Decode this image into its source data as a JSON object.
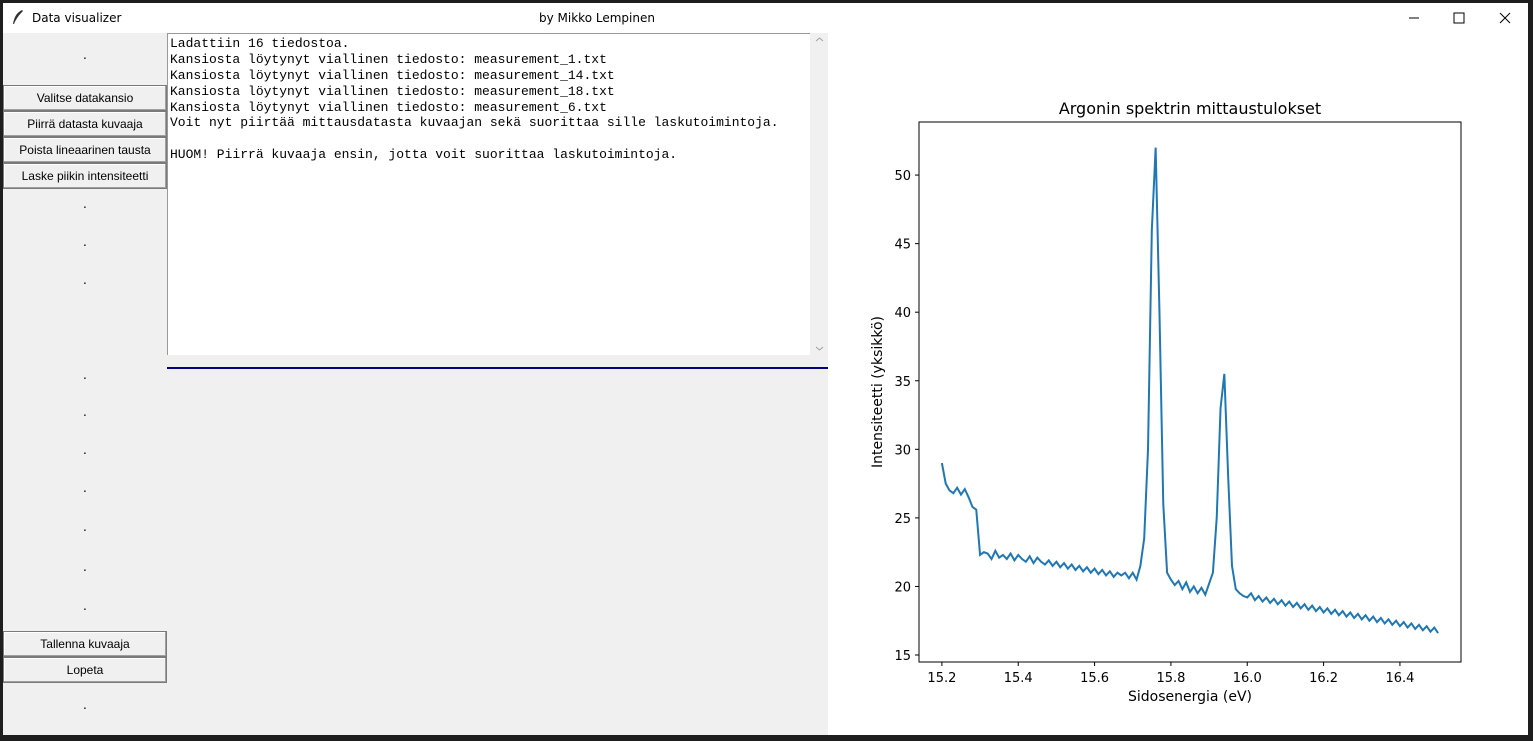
{
  "window": {
    "title": "Data visualizer",
    "subtitle": "by Mikko Lempinen"
  },
  "sidebar": {
    "buttons_top": [
      "Valitse datakansio",
      "Piirrä datasta kuvaaja",
      "Poista lineaarinen tausta",
      "Laske piikin intensiteetti"
    ],
    "buttons_bottom": [
      "Tallenna kuvaaja",
      "Lopeta"
    ],
    "dots": [
      ".",
      ".",
      ".",
      ".",
      ".",
      ".",
      ".",
      ".",
      ".",
      ".",
      ".",
      "."
    ]
  },
  "log": {
    "lines": [
      "Ladattiin 16 tiedostoa.",
      "Kansiosta löytynyt viallinen tiedosto: measurement_1.txt",
      "Kansiosta löytynyt viallinen tiedosto: measurement_14.txt",
      "Kansiosta löytynyt viallinen tiedosto: measurement_18.txt",
      "Kansiosta löytynyt viallinen tiedosto: measurement_6.txt",
      "Voit nyt piirtää mittausdatasta kuvaajan sekä suorittaa sille laskutoimintoja."
    ],
    "note": "HUOM! Piirrä kuvaaja ensin, jotta voit suorittaa laskutoimintoja."
  },
  "chart_data": {
    "type": "line",
    "title": "Argonin spektrin mittaustulokset",
    "xlabel": "Sidosenergia (eV)",
    "ylabel": "Intensiteetti (yksikkö)",
    "color": "#1f77b4",
    "x": [
      15.2,
      15.21,
      15.22,
      15.23,
      15.24,
      15.25,
      15.26,
      15.27,
      15.28,
      15.29,
      15.3,
      15.31,
      15.32,
      15.33,
      15.34,
      15.35,
      15.36,
      15.37,
      15.38,
      15.39,
      15.4,
      15.41,
      15.42,
      15.43,
      15.44,
      15.45,
      15.46,
      15.47,
      15.48,
      15.49,
      15.5,
      15.51,
      15.52,
      15.53,
      15.54,
      15.55,
      15.56,
      15.57,
      15.58,
      15.59,
      15.6,
      15.61,
      15.62,
      15.63,
      15.64,
      15.65,
      15.66,
      15.67,
      15.68,
      15.69,
      15.7,
      15.71,
      15.72,
      15.73,
      15.74,
      15.75,
      15.76,
      15.77,
      15.78,
      15.79,
      15.8,
      15.81,
      15.82,
      15.83,
      15.84,
      15.85,
      15.86,
      15.87,
      15.88,
      15.89,
      15.9,
      15.91,
      15.92,
      15.93,
      15.94,
      15.95,
      15.96,
      15.97,
      15.98,
      15.99,
      16.0,
      16.01,
      16.02,
      16.03,
      16.04,
      16.05,
      16.06,
      16.07,
      16.08,
      16.09,
      16.1,
      16.11,
      16.12,
      16.13,
      16.14,
      16.15,
      16.16,
      16.17,
      16.18,
      16.19,
      16.2,
      16.21,
      16.22,
      16.23,
      16.24,
      16.25,
      16.26,
      16.27,
      16.28,
      16.29,
      16.3,
      16.31,
      16.32,
      16.33,
      16.34,
      16.35,
      16.36,
      16.37,
      16.38,
      16.39,
      16.4,
      16.41,
      16.42,
      16.43,
      16.44,
      16.45,
      16.46,
      16.47,
      16.48,
      16.49,
      16.5
    ],
    "values": [
      29.0,
      27.5,
      27.0,
      26.8,
      27.2,
      26.7,
      27.1,
      26.5,
      25.8,
      25.6,
      22.3,
      22.5,
      22.4,
      22.0,
      22.6,
      22.1,
      22.3,
      22.0,
      22.4,
      21.9,
      22.3,
      22.0,
      21.8,
      22.2,
      21.7,
      22.1,
      21.8,
      21.6,
      21.9,
      21.5,
      21.8,
      21.4,
      21.7,
      21.3,
      21.6,
      21.2,
      21.5,
      21.1,
      21.4,
      21.0,
      21.3,
      20.9,
      21.2,
      20.8,
      21.1,
      20.7,
      21.0,
      20.8,
      21.0,
      20.6,
      21.0,
      20.5,
      21.5,
      23.5,
      30.0,
      46.0,
      52.0,
      40.0,
      26.0,
      21.0,
      20.5,
      20.1,
      20.4,
      19.8,
      20.3,
      19.6,
      20.0,
      19.5,
      19.9,
      19.4,
      20.2,
      21.0,
      25.0,
      33.0,
      35.5,
      28.0,
      21.5,
      19.8,
      19.5,
      19.3,
      19.2,
      19.5,
      19.0,
      19.3,
      18.9,
      19.2,
      18.8,
      19.1,
      18.7,
      19.0,
      18.6,
      18.9,
      18.5,
      18.8,
      18.4,
      18.7,
      18.3,
      18.6,
      18.2,
      18.5,
      18.1,
      18.4,
      18.0,
      18.3,
      17.9,
      18.2,
      17.8,
      18.1,
      17.7,
      18.0,
      17.6,
      17.9,
      17.5,
      17.8,
      17.4,
      17.7,
      17.3,
      17.6,
      17.2,
      17.5,
      17.1,
      17.4,
      17.0,
      17.3,
      16.9,
      17.2,
      16.8,
      17.1,
      16.7,
      17.0,
      16.6
    ],
    "xlim": [
      15.14,
      16.56
    ],
    "ylim": [
      14.49,
      53.87
    ],
    "xticks": [
      15.2,
      15.4,
      15.6,
      15.8,
      {
        "value": 16,
        "label": "16.0"
      },
      16.2,
      16.4
    ],
    "yticks": [
      15,
      20,
      25,
      30,
      35,
      40,
      45,
      50
    ]
  }
}
